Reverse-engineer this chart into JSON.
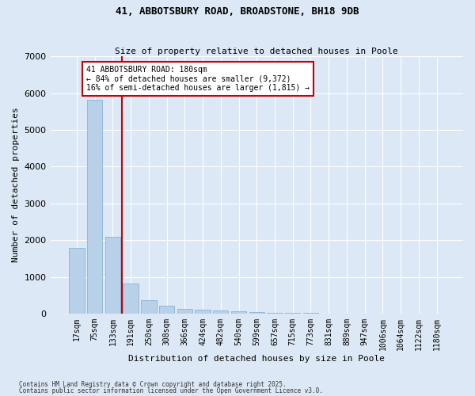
{
  "title1": "41, ABBOTSBURY ROAD, BROADSTONE, BH18 9DB",
  "title2": "Size of property relative to detached houses in Poole",
  "xlabel": "Distribution of detached houses by size in Poole",
  "ylabel": "Number of detached properties",
  "categories": [
    "17sqm",
    "75sqm",
    "133sqm",
    "191sqm",
    "250sqm",
    "308sqm",
    "366sqm",
    "424sqm",
    "482sqm",
    "540sqm",
    "599sqm",
    "657sqm",
    "715sqm",
    "773sqm",
    "831sqm",
    "889sqm",
    "947sqm",
    "1006sqm",
    "1064sqm",
    "1122sqm",
    "1180sqm"
  ],
  "values": [
    1780,
    5820,
    2090,
    820,
    370,
    210,
    130,
    100,
    85,
    60,
    45,
    30,
    18,
    10,
    8,
    5,
    4,
    3,
    2,
    2,
    1
  ],
  "bar_color": "#b8d0e8",
  "bar_edge_color": "#7aacd4",
  "annotation_text": "41 ABBOTSBURY ROAD: 180sqm\n← 84% of detached houses are smaller (9,372)\n16% of semi-detached houses are larger (1,815) →",
  "annotation_box_color": "#ffffff",
  "annotation_box_edge": "#cc0000",
  "vline_color": "#cc0000",
  "background_color": "#dce8f5",
  "grid_color": "#ffffff",
  "ylim": [
    0,
    7000
  ],
  "yticks": [
    0,
    1000,
    2000,
    3000,
    4000,
    5000,
    6000,
    7000
  ],
  "footer1": "Contains HM Land Registry data © Crown copyright and database right 2025.",
  "footer2": "Contains public sector information licensed under the Open Government Licence v3.0."
}
